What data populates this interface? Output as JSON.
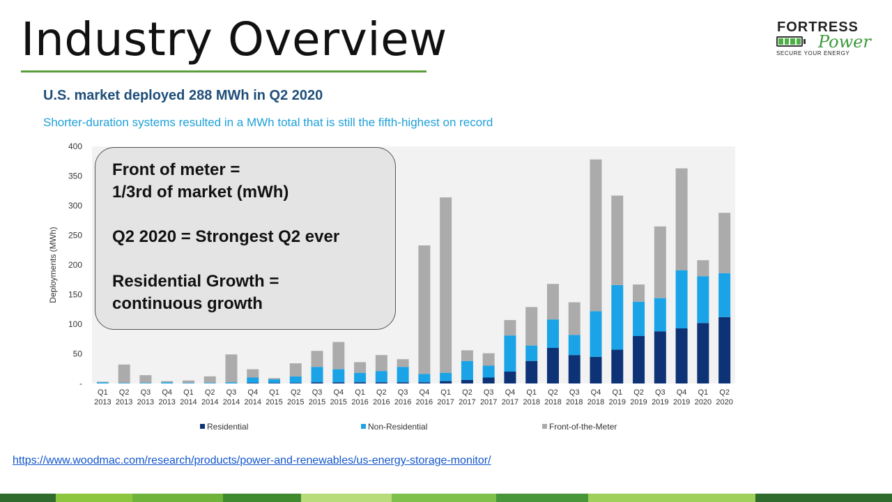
{
  "slide": {
    "title": "Industry Overview"
  },
  "logo": {
    "brand": "FORTRESS",
    "power": "Power",
    "tagline": "SECURE YOUR ENERGY"
  },
  "callout": {
    "lines": [
      "Front of meter =",
      "1/3rd of market (mWh)",
      "",
      "Q2 2020 = Strongest Q2 ever",
      "",
      "Residential Growth =",
      "continuous growth"
    ]
  },
  "source_link": "https://www.woodmac.com/research/products/power-and-renewables/us-energy-storage-monitor/",
  "colors": {
    "residential": "#0d3275",
    "non_residential": "#1aa3e6",
    "front_of_meter": "#ababab",
    "title": "#1f4e79",
    "subtitle": "#1fa0d8",
    "accent_green": "#5a9e3a"
  },
  "footer_colors": [
    "#2f6b2c",
    "#8cc63f",
    "#6fb33b",
    "#3f8a2f",
    "#b8dc7a",
    "#7ec04a",
    "#47963a",
    "#9fd05a",
    "#2f6b2c"
  ],
  "chart_data": {
    "type": "bar",
    "stacked": true,
    "title": "U.S. market deployed 288 MWh in Q2 2020",
    "subtitle": "Shorter-duration systems resulted in a MWh total that is still the fifth-highest on record",
    "ylabel": "Deployments (MWh)",
    "xlabel": "",
    "ylim": [
      0,
      400
    ],
    "yticks": [
      0,
      50,
      100,
      150,
      200,
      250,
      300,
      350,
      400
    ],
    "ytick_labels": [
      "-",
      "50",
      "100",
      "150",
      "200",
      "250",
      "300",
      "350",
      "400"
    ],
    "categories": [
      [
        "Q1",
        "2013"
      ],
      [
        "Q2",
        "2013"
      ],
      [
        "Q3",
        "2013"
      ],
      [
        "Q4",
        "2013"
      ],
      [
        "Q1",
        "2014"
      ],
      [
        "Q2",
        "2014"
      ],
      [
        "Q3",
        "2014"
      ],
      [
        "Q4",
        "2014"
      ],
      [
        "Q1",
        "2015"
      ],
      [
        "Q2",
        "2015"
      ],
      [
        "Q3",
        "2015"
      ],
      [
        "Q4",
        "2015"
      ],
      [
        "Q1",
        "2016"
      ],
      [
        "Q2",
        "2016"
      ],
      [
        "Q3",
        "2016"
      ],
      [
        "Q4",
        "2016"
      ],
      [
        "Q1",
        "2017"
      ],
      [
        "Q2",
        "2017"
      ],
      [
        "Q3",
        "2017"
      ],
      [
        "Q4",
        "2017"
      ],
      [
        "Q1",
        "2018"
      ],
      [
        "Q2",
        "2018"
      ],
      [
        "Q3",
        "2018"
      ],
      [
        "Q4",
        "2018"
      ],
      [
        "Q1",
        "2019"
      ],
      [
        "Q2",
        "2019"
      ],
      [
        "Q3",
        "2019"
      ],
      [
        "Q4",
        "2019"
      ],
      [
        "Q1",
        "2020"
      ],
      [
        "Q2",
        "2020"
      ]
    ],
    "series": [
      {
        "name": "Residential",
        "color": "#0d3275",
        "values": [
          0,
          0,
          0,
          0,
          0,
          0,
          0,
          1,
          1,
          1,
          2,
          2,
          2,
          2,
          2,
          2,
          4,
          6,
          10,
          20,
          38,
          60,
          48,
          45,
          57,
          80,
          88,
          93,
          102,
          112
        ]
      },
      {
        "name": "Non-Residential",
        "color": "#1aa3e6",
        "values": [
          2,
          1,
          1,
          2,
          1,
          1,
          2,
          9,
          6,
          11,
          26,
          22,
          16,
          19,
          26,
          14,
          14,
          32,
          20,
          61,
          26,
          48,
          34,
          77,
          109,
          58,
          56,
          98,
          79,
          74
        ]
      },
      {
        "name": "Front-of-the-Meter",
        "color": "#ababab",
        "values": [
          1,
          31,
          13,
          2,
          4,
          11,
          47,
          14,
          2,
          22,
          27,
          46,
          18,
          27,
          13,
          217,
          296,
          18,
          21,
          26,
          65,
          60,
          55,
          256,
          151,
          29,
          121,
          172,
          27,
          102
        ]
      }
    ],
    "legend": {
      "position": "bottom",
      "entries": [
        "Residential",
        "Non-Residential",
        "Front-of-the-Meter"
      ]
    }
  }
}
